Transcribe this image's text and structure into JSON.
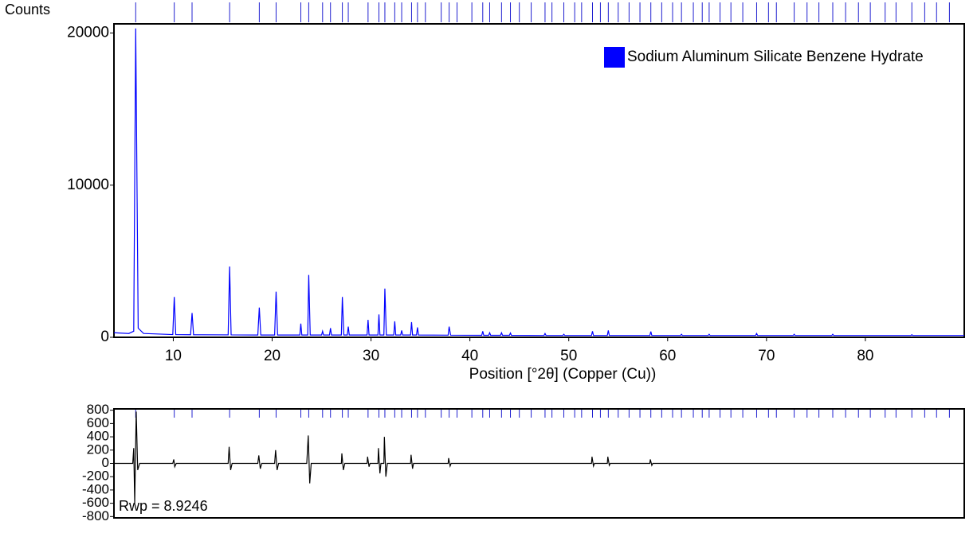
{
  "chart_data": [
    {
      "type": "line",
      "ylabel": "Counts",
      "xlabel": "Position [°2θ] (Copper (Cu))",
      "xlim": [
        4,
        90
      ],
      "ylim": [
        0,
        20600
      ],
      "xticks": [
        10,
        20,
        30,
        40,
        50,
        60,
        70,
        80
      ],
      "yticks": [
        0,
        10000,
        20000
      ],
      "legend": "upper right",
      "reflection_color": "#2020d0",
      "reflections": [
        6.2,
        10.1,
        11.9,
        15.7,
        18.7,
        20.4,
        22.9,
        23.7,
        25.1,
        25.9,
        27.1,
        27.7,
        29.7,
        30.8,
        31.4,
        32.4,
        33.1,
        34.1,
        34.7,
        35.5,
        37.1,
        37.9,
        38.7,
        40.2,
        41.3,
        42.0,
        43.2,
        44.1,
        45.0,
        46.2,
        47.6,
        48.3,
        49.5,
        50.6,
        51.3,
        52.4,
        53.2,
        54.0,
        55.0,
        56.1,
        57.2,
        58.3,
        59.4,
        60.5,
        61.4,
        62.6,
        63.5,
        64.2,
        65.3,
        66.4,
        67.6,
        69.0,
        70.2,
        71.0,
        72.8,
        74.1,
        75.3,
        76.7,
        78.0,
        79.3,
        80.5,
        82.0,
        83.1,
        84.7,
        86.0,
        87.2,
        88.5
      ],
      "x": [
        4,
        5.5,
        6.0,
        6.2,
        6.45,
        7,
        9.95,
        10.1,
        10.25,
        11.75,
        11.9,
        12.05,
        15.55,
        15.7,
        15.85,
        18.55,
        18.7,
        18.85,
        20.25,
        20.4,
        20.55,
        22.8,
        22.9,
        23.0,
        23.6,
        23.7,
        23.85,
        25.0,
        25.1,
        25.2,
        25.8,
        25.9,
        26.0,
        27.0,
        27.1,
        27.25,
        27.6,
        27.7,
        27.8,
        29.6,
        29.7,
        29.8,
        30.7,
        30.8,
        30.9,
        31.3,
        31.4,
        31.55,
        32.3,
        32.4,
        32.5,
        33.0,
        33.1,
        33.2,
        34.0,
        34.1,
        34.2,
        34.6,
        34.7,
        34.8,
        37.8,
        37.9,
        38.05,
        41.2,
        41.3,
        41.4,
        41.9,
        42.0,
        42.1,
        43.1,
        43.2,
        43.3,
        44.0,
        44.1,
        44.2,
        47.5,
        47.6,
        47.7,
        49.4,
        49.5,
        49.6,
        52.3,
        52.4,
        52.5,
        53.9,
        54.0,
        54.1,
        58.2,
        58.3,
        58.4,
        61.3,
        61.4,
        61.5,
        64.1,
        64.2,
        64.3,
        68.9,
        69.0,
        69.1,
        72.7,
        72.8,
        72.9,
        76.6,
        76.7,
        76.8,
        84.6,
        84.7,
        84.8,
        90
      ],
      "series": [
        {
          "name": "Sodium Aluminum Silicate Benzene Hydrate",
          "color": "#0000ff",
          "values": [
            300,
            250,
            400,
            20300,
            600,
            250,
            180,
            2650,
            180,
            170,
            1600,
            170,
            160,
            4650,
            160,
            150,
            1950,
            150,
            150,
            3000,
            150,
            150,
            900,
            150,
            150,
            4100,
            150,
            150,
            400,
            150,
            150,
            600,
            150,
            150,
            2650,
            150,
            150,
            700,
            150,
            150,
            1150,
            150,
            150,
            1500,
            150,
            150,
            3200,
            150,
            150,
            1050,
            150,
            150,
            450,
            150,
            150,
            1000,
            150,
            150,
            650,
            150,
            140,
            700,
            140,
            130,
            400,
            130,
            130,
            300,
            130,
            130,
            300,
            130,
            130,
            280,
            130,
            120,
            250,
            120,
            120,
            200,
            120,
            120,
            400,
            120,
            120,
            450,
            120,
            120,
            380,
            120,
            120,
            200,
            120,
            120,
            200,
            120,
            120,
            250,
            120,
            120,
            200,
            120,
            120,
            200,
            120,
            120,
            170,
            120,
            120
          ]
        }
      ]
    },
    {
      "type": "line",
      "annotation": "Rwp = 8.9246",
      "xlim": [
        4,
        90
      ],
      "ylim": [
        -820,
        820
      ],
      "yticks": [
        800,
        600,
        400,
        200,
        0,
        -200,
        -400,
        -600,
        -800
      ],
      "x": [
        4,
        5.9,
        6.0,
        6.1,
        6.25,
        6.4,
        6.6,
        9.95,
        10.05,
        10.15,
        10.3,
        15.55,
        15.65,
        15.8,
        15.95,
        18.55,
        18.65,
        18.8,
        18.95,
        20.25,
        20.35,
        20.5,
        20.65,
        23.5,
        23.65,
        23.8,
        23.95,
        27.0,
        27.05,
        27.2,
        27.35,
        29.6,
        29.65,
        29.8,
        29.9,
        30.7,
        30.75,
        30.9,
        31.0,
        31.3,
        31.35,
        31.5,
        31.65,
        34.0,
        34.05,
        34.2,
        34.3,
        37.8,
        37.85,
        38.0,
        38.1,
        52.3,
        52.35,
        52.5,
        52.6,
        53.9,
        53.95,
        54.1,
        54.2,
        58.2,
        58.25,
        58.4,
        58.5,
        90
      ],
      "series": [
        {
          "color": "#000000",
          "values": [
            0,
            0,
            230,
            -600,
            780,
            -100,
            0,
            0,
            60,
            -50,
            0,
            0,
            250,
            -100,
            0,
            0,
            120,
            -80,
            0,
            0,
            200,
            -100,
            0,
            0,
            420,
            -300,
            0,
            0,
            150,
            -100,
            0,
            0,
            100,
            -50,
            0,
            0,
            230,
            -150,
            0,
            0,
            400,
            -200,
            0,
            0,
            130,
            -80,
            0,
            0,
            80,
            -40,
            0,
            0,
            100,
            -40,
            0,
            0,
            100,
            -30,
            0,
            0,
            60,
            -30,
            0,
            0
          ]
        }
      ]
    }
  ]
}
